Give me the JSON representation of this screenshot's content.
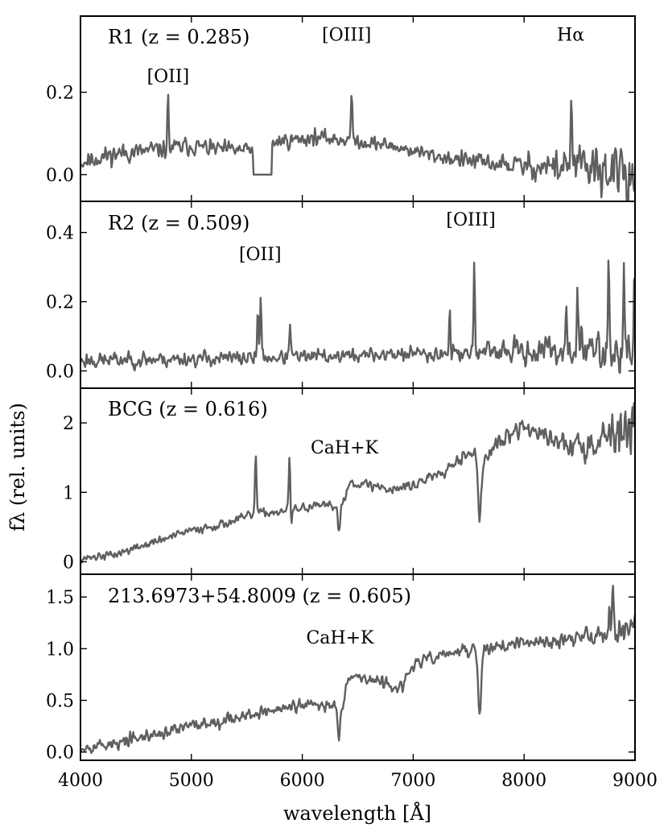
{
  "figure": {
    "xlabel": "wavelength [Å]",
    "ylabel": "fλ (rel. units)",
    "line_color": "#5f5f5f"
  },
  "chart_data": [
    {
      "type": "line",
      "panel_label": "R1 (z = 0.285)",
      "xlim": [
        4000,
        9000
      ],
      "ylim": [
        -0.065,
        0.385
      ],
      "xticks": [
        4000,
        5000,
        6000,
        7000,
        8000,
        9000
      ],
      "yticks": [
        0.0,
        0.2
      ],
      "ytick_labels": [
        "0.0",
        "0.2"
      ],
      "annotations": [
        {
          "text": "[OII]",
          "x": 4790,
          "y": 0.225
        },
        {
          "text": "[OIII]",
          "x": 6400,
          "y": 0.325
        },
        {
          "text": "Hα",
          "x": 8420,
          "y": 0.325
        }
      ],
      "series": [
        {
          "baseline": [
            [
              4000,
              0.03
            ],
            [
              4300,
              0.05
            ],
            [
              4700,
              0.06
            ],
            [
              5000,
              0.07
            ],
            [
              5300,
              0.06
            ],
            [
              5570,
              0.06
            ],
            [
              5770,
              0.08
            ],
            [
              6100,
              0.09
            ],
            [
              6400,
              0.085
            ],
            [
              6800,
              0.07
            ],
            [
              7200,
              0.045
            ],
            [
              7600,
              0.03
            ],
            [
              8000,
              0.02
            ],
            [
              8400,
              0.02
            ],
            [
              8800,
              0.01
            ],
            [
              9000,
              0.01
            ]
          ],
          "noise": [
            [
              4000,
              0.02
            ],
            [
              4200,
              0.02
            ],
            [
              5500,
              0.016
            ],
            [
              7000,
              0.014
            ],
            [
              7700,
              0.018
            ],
            [
              8200,
              0.03
            ],
            [
              8600,
              0.05
            ],
            [
              9000,
              0.06
            ]
          ],
          "features": [
            {
              "x": 4790,
              "amp": 0.12,
              "width": 6
            },
            {
              "x": 6445,
              "amp": 0.09,
              "width": 8
            },
            {
              "x": 8425,
              "amp": 0.18,
              "width": 6
            },
            {
              "x": 8780,
              "amp": -0.07,
              "width": 8
            },
            {
              "x": 8935,
              "amp": -0.07,
              "width": 8
            }
          ],
          "flat_gap": {
            "x0": 5560,
            "x1": 5725,
            "y": 0.0
          },
          "seed": 11
        }
      ]
    },
    {
      "type": "line",
      "panel_label": "R2 (z = 0.509)",
      "xlim": [
        4000,
        9000
      ],
      "ylim": [
        -0.05,
        0.49
      ],
      "xticks": [
        4000,
        5000,
        6000,
        7000,
        8000,
        9000
      ],
      "yticks": [
        0.0,
        0.2,
        0.4
      ],
      "ytick_labels": [
        "0.0",
        "0.2",
        "0.4"
      ],
      "annotations": [
        {
          "text": "[OII]",
          "x": 5620,
          "y": 0.32
        },
        {
          "text": "[OIII]",
          "x": 7520,
          "y": 0.42
        }
      ],
      "series": [
        {
          "baseline": [
            [
              4000,
              0.03
            ],
            [
              5000,
              0.035
            ],
            [
              6000,
              0.04
            ],
            [
              7000,
              0.05
            ],
            [
              8000,
              0.055
            ],
            [
              9000,
              0.065
            ]
          ],
          "noise": [
            [
              4000,
              0.02
            ],
            [
              6000,
              0.017
            ],
            [
              7500,
              0.02
            ],
            [
              8200,
              0.035
            ],
            [
              9000,
              0.06
            ]
          ],
          "features": [
            {
              "x": 5600,
              "amp": 0.15,
              "width": 6
            },
            {
              "x": 5625,
              "amp": 0.18,
              "width": 6
            },
            {
              "x": 5890,
              "amp": 0.11,
              "width": 6
            },
            {
              "x": 7330,
              "amp": 0.13,
              "width": 6
            },
            {
              "x": 7550,
              "amp": 0.27,
              "width": 6
            },
            {
              "x": 8380,
              "amp": 0.15,
              "width": 6
            },
            {
              "x": 8480,
              "amp": 0.2,
              "width": 6
            },
            {
              "x": 8760,
              "amp": 0.29,
              "width": 6
            },
            {
              "x": 8900,
              "amp": 0.22,
              "width": 6
            },
            {
              "x": 8995,
              "amp": 0.22,
              "width": 6
            },
            {
              "x": 8790,
              "amp": -0.07,
              "width": 8
            }
          ],
          "seed": 23
        }
      ]
    },
    {
      "type": "line",
      "panel_label": "BCG (z = 0.616)",
      "xlim": [
        4000,
        9000
      ],
      "ylim": [
        -0.18,
        2.5
      ],
      "xticks": [
        4000,
        5000,
        6000,
        7000,
        8000,
        9000
      ],
      "yticks": [
        0,
        1,
        2
      ],
      "ytick_labels": [
        "0",
        "1",
        "2"
      ],
      "annotations": [
        {
          "text": "CaH+K",
          "x": 6380,
          "y": 1.56
        }
      ],
      "series": [
        {
          "baseline": [
            [
              4000,
              0.05
            ],
            [
              4300,
              0.1
            ],
            [
              4600,
              0.25
            ],
            [
              5000,
              0.45
            ],
            [
              5300,
              0.55
            ],
            [
              5600,
              0.7
            ],
            [
              5800,
              0.72
            ],
            [
              6100,
              0.8
            ],
            [
              6350,
              0.8
            ],
            [
              6430,
              1.15
            ],
            [
              6800,
              1.05
            ],
            [
              7000,
              1.1
            ],
            [
              7300,
              1.35
            ],
            [
              7500,
              1.6
            ],
            [
              7650,
              1.5
            ],
            [
              7800,
              1.75
            ],
            [
              8000,
              1.95
            ],
            [
              8250,
              1.75
            ],
            [
              8500,
              1.65
            ],
            [
              8800,
              1.9
            ],
            [
              9000,
              1.85
            ]
          ],
          "noise": [
            [
              4000,
              0.05
            ],
            [
              6000,
              0.05
            ],
            [
              7300,
              0.08
            ],
            [
              8300,
              0.12
            ],
            [
              8700,
              0.25
            ],
            [
              9000,
              0.45
            ]
          ],
          "features": [
            {
              "x": 5580,
              "amp": 0.85,
              "width": 7
            },
            {
              "x": 5885,
              "amp": 0.8,
              "width": 7
            },
            {
              "x": 6330,
              "amp": -0.35,
              "width": 10
            },
            {
              "x": 7600,
              "amp": -0.9,
              "width": 16
            },
            {
              "x": 5900,
              "amp": -0.3,
              "width": 6
            }
          ],
          "seed": 37
        }
      ]
    },
    {
      "type": "line",
      "panel_label": "213.6973+54.8009 (z = 0.605)",
      "xlim": [
        4000,
        9000
      ],
      "ylim": [
        -0.08,
        1.72
      ],
      "xticks": [
        4000,
        5000,
        6000,
        7000,
        8000,
        9000
      ],
      "yticks": [
        0.0,
        0.5,
        1.0,
        1.5
      ],
      "ytick_labels": [
        "0.0",
        "0.5",
        "1.0",
        "1.5"
      ],
      "annotations": [
        {
          "text": "CaH+K",
          "x": 6340,
          "y": 1.05
        }
      ],
      "series": [
        {
          "baseline": [
            [
              4000,
              0.05
            ],
            [
              4300,
              0.08
            ],
            [
              5000,
              0.25
            ],
            [
              5600,
              0.38
            ],
            [
              6000,
              0.45
            ],
            [
              6360,
              0.45
            ],
            [
              6420,
              0.75
            ],
            [
              6900,
              0.62
            ],
            [
              7000,
              0.85
            ],
            [
              7300,
              0.95
            ],
            [
              7600,
              1.0
            ],
            [
              8000,
              1.05
            ],
            [
              8500,
              1.1
            ],
            [
              9000,
              1.22
            ]
          ],
          "noise": [
            [
              4000,
              0.05
            ],
            [
              6000,
              0.05
            ],
            [
              8000,
              0.05
            ],
            [
              8700,
              0.08
            ],
            [
              9000,
              0.1
            ]
          ],
          "features": [
            {
              "x": 6330,
              "amp": -0.3,
              "width": 10
            },
            {
              "x": 7600,
              "amp": -0.65,
              "width": 14
            },
            {
              "x": 8770,
              "amp": 0.35,
              "width": 6
            },
            {
              "x": 8800,
              "amp": 0.45,
              "width": 6
            },
            {
              "x": 4340,
              "amp": -0.1,
              "width": 6
            }
          ],
          "seed": 53
        }
      ]
    }
  ]
}
